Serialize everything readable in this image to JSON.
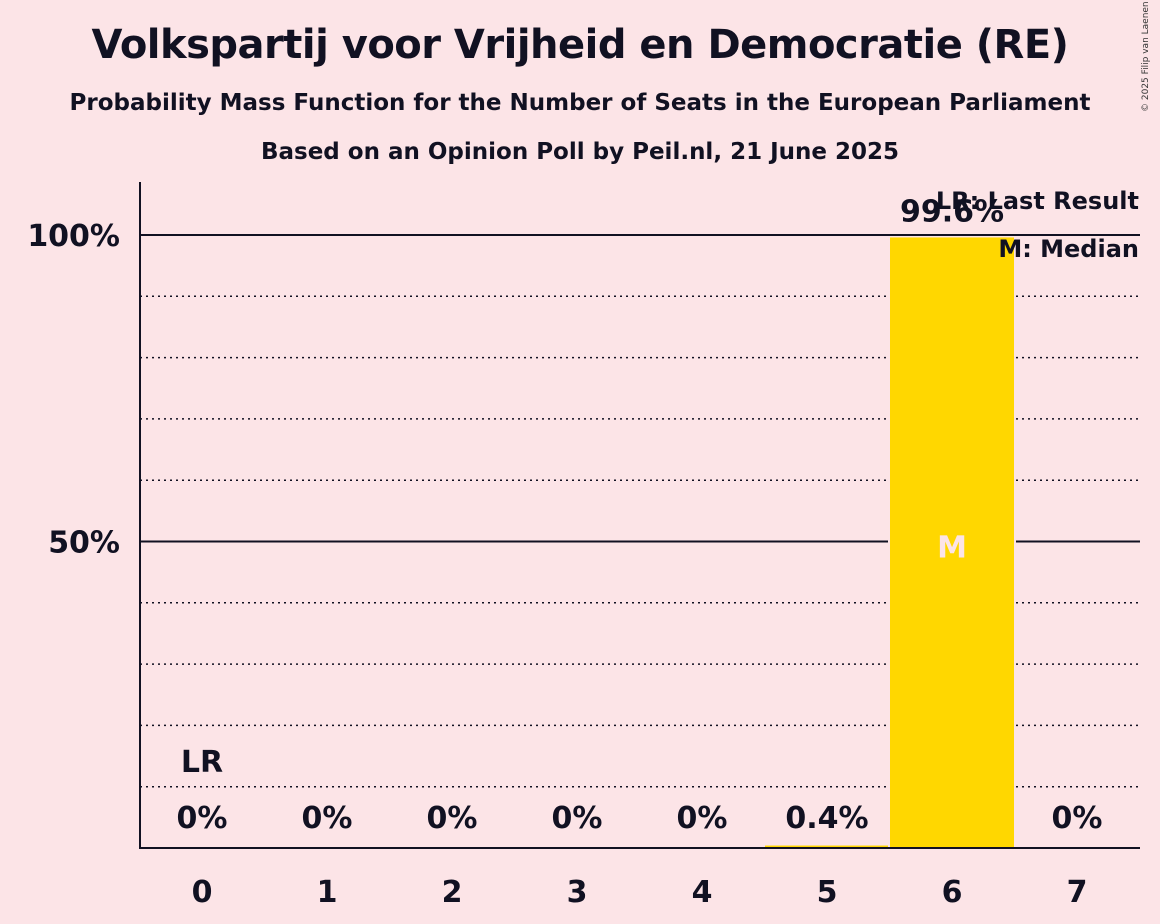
{
  "chart_data": {
    "type": "bar",
    "title": "Volkspartij voor Vrijheid en Democratie (RE)",
    "subtitle": "Probability Mass Function for the Number of Seats in the European Parliament",
    "subtitle2": "Based on an Opinion Poll by Peil.nl, 21 June 2025",
    "copyright": "© 2025 Filip van Laenen",
    "categories": [
      "0",
      "1",
      "2",
      "3",
      "4",
      "5",
      "6",
      "7"
    ],
    "values": [
      0,
      0,
      0,
      0,
      0,
      0.4,
      99.6,
      0
    ],
    "value_labels": [
      "0%",
      "0%",
      "0%",
      "0%",
      "0%",
      "0.4%",
      "99.6%",
      "0%"
    ],
    "ylim": [
      0,
      100
    ],
    "yticks": [
      {
        "value": 50,
        "label": "50%"
      },
      {
        "value": 100,
        "label": "100%"
      }
    ],
    "minor_gridlines": [
      10,
      20,
      30,
      40,
      60,
      70,
      80,
      90
    ],
    "bar_color": "#ffd700",
    "last_result_index": 0,
    "last_result_marker": "LR",
    "median_index": 6,
    "median_marker": "M",
    "legend": [
      "LR: Last Result",
      "M: Median"
    ],
    "legend_position": "top-right",
    "grid": true
  }
}
